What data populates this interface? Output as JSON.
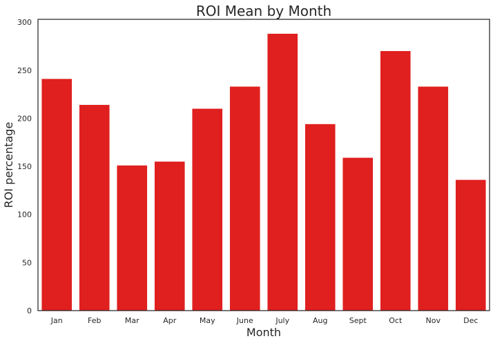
{
  "chart_data": {
    "type": "bar",
    "title": "ROI Mean by Month",
    "xlabel": "Month",
    "ylabel": "ROI percentage",
    "categories": [
      "Jan",
      "Feb",
      "Mar",
      "Apr",
      "May",
      "June",
      "July",
      "Aug",
      "Sept",
      "Oct",
      "Nov",
      "Dec"
    ],
    "values": [
      241,
      214,
      151,
      155,
      210,
      233,
      288,
      194,
      159,
      270,
      233,
      136
    ],
    "ylim": [
      0,
      303
    ],
    "yticks": [
      0,
      50,
      100,
      150,
      200,
      250,
      300
    ],
    "bar_color": "#e01f1f",
    "grid": false,
    "legend": "none"
  }
}
